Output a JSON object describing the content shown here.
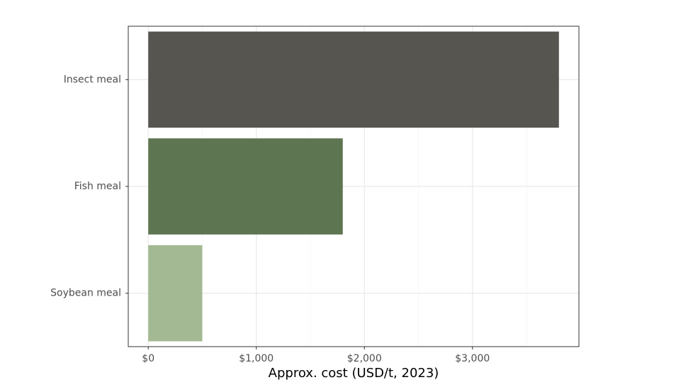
{
  "chart_data": {
    "type": "bar",
    "orientation": "horizontal",
    "categories": [
      "Insect meal",
      "Fish meal",
      "Soybean meal"
    ],
    "values": [
      3800,
      1800,
      500
    ],
    "colors": [
      "#575550",
      "#5e7551",
      "#a3b993"
    ],
    "title": "",
    "xlabel": "Approx. cost (USD/t, 2023)",
    "ylabel": "",
    "xlim": [
      -185,
      3985
    ],
    "xticks": [
      0,
      1000,
      2000,
      3000
    ],
    "xtick_labels": [
      "$0",
      "$1,000",
      "$2,000",
      "$3,000"
    ],
    "grid": true,
    "legend": "none",
    "panel_border_color": "#333333",
    "grid_major_color": "#ebebeb",
    "grid_minor_color": "#f5f5f5"
  }
}
